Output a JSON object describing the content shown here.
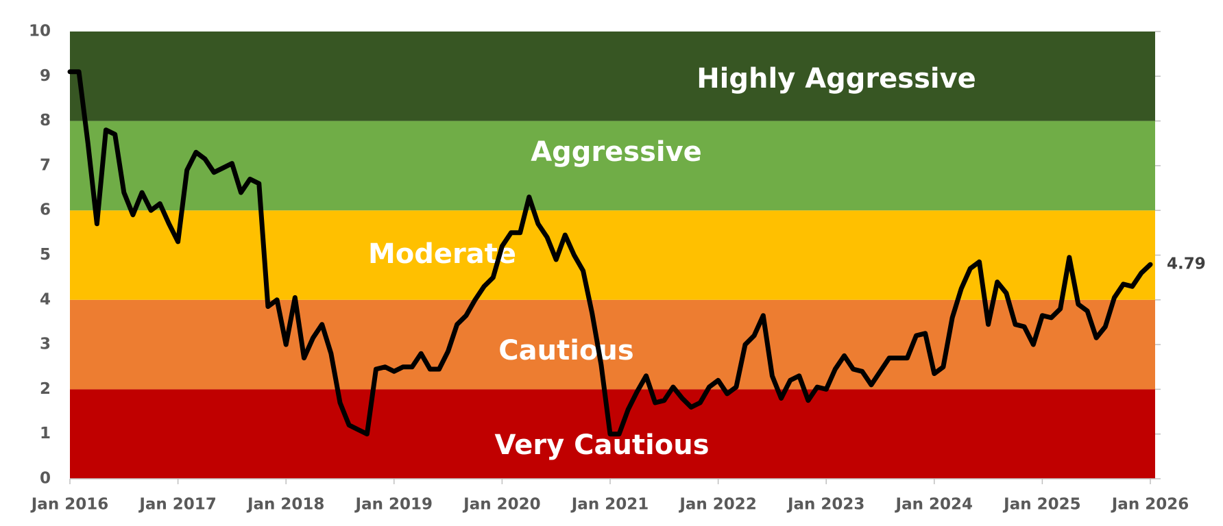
{
  "chart_data": {
    "type": "line",
    "bands": [
      {
        "label": "Very Cautious",
        "from": 0,
        "to": 2,
        "color": "#c00000"
      },
      {
        "label": "Cautious",
        "from": 2,
        "to": 4,
        "color": "#ed7d31"
      },
      {
        "label": "Moderate",
        "from": 4,
        "to": 6,
        "color": "#ffc000"
      },
      {
        "label": "Aggressive",
        "from": 6,
        "to": 8,
        "color": "#70ad47"
      },
      {
        "label": "Highly Aggressive",
        "from": 8,
        "to": 10,
        "color": "#375623"
      }
    ],
    "x": [
      "2016-01",
      "2016-02",
      "2016-03",
      "2016-04",
      "2016-05",
      "2016-06",
      "2016-07",
      "2016-08",
      "2016-09",
      "2016-10",
      "2016-11",
      "2016-12",
      "2017-01",
      "2017-02",
      "2017-03",
      "2017-04",
      "2017-05",
      "2017-06",
      "2017-07",
      "2017-08",
      "2017-09",
      "2017-10",
      "2017-11",
      "2017-12",
      "2018-01",
      "2018-02",
      "2018-03",
      "2018-04",
      "2018-05",
      "2018-06",
      "2018-07",
      "2018-08",
      "2018-09",
      "2018-10",
      "2018-11",
      "2018-12",
      "2019-01",
      "2019-02",
      "2019-03",
      "2019-04",
      "2019-05",
      "2019-06",
      "2019-07",
      "2019-08",
      "2019-09",
      "2019-10",
      "2019-11",
      "2019-12",
      "2020-01",
      "2020-02",
      "2020-03",
      "2020-04",
      "2020-05",
      "2020-06",
      "2020-07",
      "2020-08",
      "2020-09",
      "2020-10",
      "2020-11",
      "2020-12",
      "2021-01",
      "2021-02",
      "2021-03",
      "2021-04",
      "2021-05",
      "2021-06",
      "2021-07",
      "2021-08",
      "2021-09",
      "2021-10",
      "2021-11",
      "2021-12",
      "2022-01",
      "2022-02",
      "2022-03",
      "2022-04",
      "2022-05",
      "2022-06",
      "2022-07",
      "2022-08",
      "2022-09",
      "2022-10",
      "2022-11",
      "2022-12",
      "2023-01",
      "2023-02",
      "2023-03",
      "2023-04",
      "2023-05",
      "2023-06",
      "2023-07",
      "2023-08",
      "2023-09",
      "2023-10",
      "2023-11",
      "2023-12",
      "2024-01",
      "2024-02",
      "2024-03",
      "2024-04",
      "2024-05",
      "2024-06",
      "2024-07",
      "2024-08",
      "2024-09",
      "2024-10",
      "2024-11",
      "2024-12",
      "2025-01",
      "2025-02",
      "2025-03",
      "2025-04",
      "2025-05",
      "2025-06",
      "2025-07",
      "2025-08",
      "2025-09",
      "2025-10",
      "2025-11",
      "2025-12",
      "2026-01"
    ],
    "values": [
      9.1,
      9.1,
      7.5,
      5.7,
      7.8,
      7.7,
      6.4,
      5.9,
      6.4,
      6.0,
      6.15,
      5.7,
      5.3,
      6.9,
      7.3,
      7.15,
      6.85,
      6.95,
      7.05,
      6.4,
      6.7,
      6.6,
      3.85,
      4.0,
      3.0,
      4.05,
      2.7,
      3.15,
      3.45,
      2.8,
      1.7,
      1.2,
      1.1,
      1.0,
      2.45,
      2.5,
      2.4,
      2.5,
      2.5,
      2.8,
      2.45,
      2.45,
      2.85,
      3.45,
      3.65,
      4.0,
      4.3,
      4.5,
      5.2,
      5.5,
      5.5,
      6.3,
      5.7,
      5.4,
      4.9,
      5.45,
      5.0,
      4.65,
      3.7,
      2.55,
      1.0,
      1.0,
      1.55,
      1.95,
      2.3,
      1.7,
      1.75,
      2.05,
      1.8,
      1.6,
      1.7,
      2.05,
      2.2,
      1.9,
      2.05,
      3.0,
      3.2,
      3.65,
      2.3,
      1.8,
      2.2,
      2.3,
      1.75,
      2.05,
      2.0,
      2.45,
      2.75,
      2.45,
      2.4,
      2.1,
      2.4,
      2.7,
      2.7,
      2.7,
      3.2,
      3.25,
      2.35,
      2.5,
      3.6,
      4.25,
      4.7,
      4.85,
      3.45,
      4.4,
      4.15,
      3.45,
      3.4,
      3.0,
      3.65,
      3.6,
      3.8,
      4.95,
      3.9,
      3.75,
      3.15,
      3.4,
      4.05,
      4.35,
      4.3,
      4.6,
      4.79
    ],
    "color": "#000000",
    "xlim": [
      "2016-01",
      "2026-01"
    ],
    "xticks": [
      {
        "value": "2016-01",
        "label": "Jan 2016"
      },
      {
        "value": "2017-01",
        "label": "Jan 2017"
      },
      {
        "value": "2018-01",
        "label": "Jan 2018"
      },
      {
        "value": "2019-01",
        "label": "Jan 2019"
      },
      {
        "value": "2020-01",
        "label": "Jan 2020"
      },
      {
        "value": "2021-01",
        "label": "Jan 2021"
      },
      {
        "value": "2022-01",
        "label": "Jan 2022"
      },
      {
        "value": "2023-01",
        "label": "Jan 2023"
      },
      {
        "value": "2024-01",
        "label": "Jan 2024"
      },
      {
        "value": "2025-01",
        "label": "Jan 2025"
      },
      {
        "value": "2026-01",
        "label": "Jan 2026"
      }
    ],
    "ylim": [
      0,
      10
    ],
    "yticks": [
      0,
      1,
      2,
      3,
      4,
      5,
      6,
      7,
      8,
      9,
      10
    ]
  }
}
